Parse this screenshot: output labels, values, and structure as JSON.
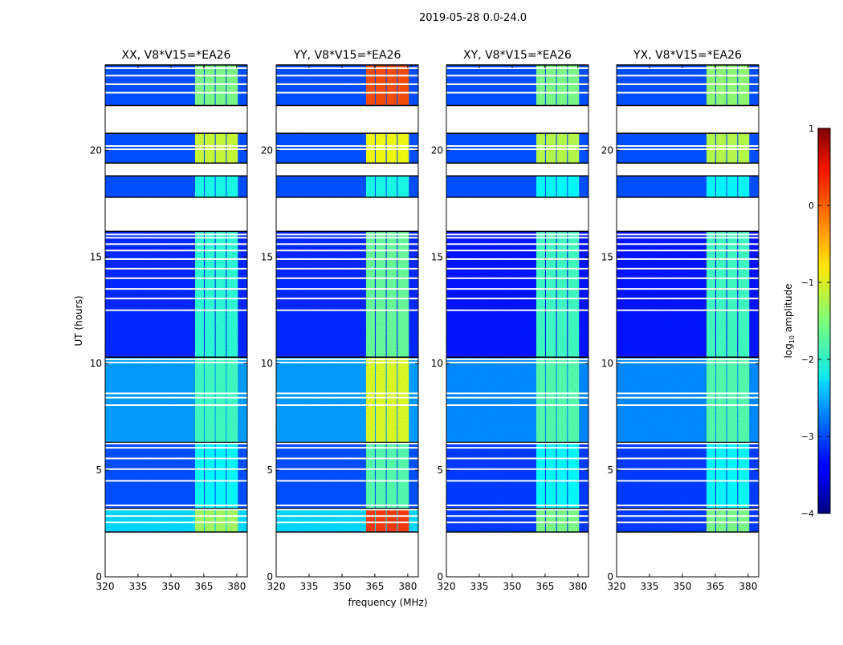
{
  "chart_data": {
    "type": "heatmap",
    "suptitle": "2019-05-28 0.0-24.0",
    "xlabel": "frequency (MHz)",
    "ylabel": "UT (hours)",
    "xlim": [
      320,
      384.8
    ],
    "ylim": [
      0,
      24
    ],
    "xticks": [
      320,
      335,
      350,
      365,
      380
    ],
    "yticks": [
      0,
      5,
      10,
      15,
      20
    ],
    "colorbar": {
      "label": "log10 amplitude",
      "label_main": "log",
      "label_sub": "10",
      "label_rest": " amplitude",
      "range": [
        -4,
        1
      ],
      "ticks": [
        1,
        0,
        -1,
        -2,
        -3,
        -4
      ]
    },
    "subbands": [
      [
        361,
        365
      ],
      [
        365.4,
        370
      ],
      [
        370.4,
        375
      ],
      [
        375.4,
        380.5
      ]
    ],
    "flagged_hours": [
      2.55,
      2.85,
      3.15,
      3.35,
      4.5,
      5.05,
      5.55,
      6.05,
      6.25,
      8.05,
      8.4,
      8.6,
      10.05,
      10.2,
      12.5,
      13.05,
      13.5,
      14.0,
      14.45,
      14.9,
      15.3,
      15.6,
      15.9,
      16.05,
      20.2,
      20.05,
      22.7,
      23.1,
      23.5,
      23.85
    ],
    "panels": [
      {
        "title": "XX, V8*V15=*EA26",
        "segments": [
          {
            "t": [
              2.1,
              3.2
            ],
            "bg": -2.3,
            "band": -1.3
          },
          {
            "t": [
              3.2,
              6.3
            ],
            "bg": -3.0,
            "band": -2.1
          },
          {
            "t": [
              6.3,
              10.3
            ],
            "bg": -2.6,
            "band": -1.8
          },
          {
            "t": [
              10.3,
              16.2
            ],
            "bg": -3.2,
            "band": -1.9
          },
          {
            "t": [
              17.8,
              18.8
            ],
            "bg": -3.0,
            "band": -2.0
          },
          {
            "t": [
              19.4,
              20.8
            ],
            "bg": -3.0,
            "band": -1.1
          },
          {
            "t": [
              22.1,
              24.0
            ],
            "bg": -3.0,
            "band": -1.5
          }
        ]
      },
      {
        "title": "YY, V8*V15=*EA26",
        "segments": [
          {
            "t": [
              2.1,
              3.2
            ],
            "bg": -2.3,
            "band": 0.1
          },
          {
            "t": [
              3.2,
              6.3
            ],
            "bg": -3.0,
            "band": -1.7
          },
          {
            "t": [
              6.3,
              10.3
            ],
            "bg": -2.6,
            "band": -1.0
          },
          {
            "t": [
              10.3,
              16.2
            ],
            "bg": -3.2,
            "band": -1.6
          },
          {
            "t": [
              17.8,
              18.8
            ],
            "bg": -3.0,
            "band": -2.0
          },
          {
            "t": [
              19.4,
              20.8
            ],
            "bg": -3.0,
            "band": -0.9
          },
          {
            "t": [
              22.1,
              24.0
            ],
            "bg": -3.0,
            "band": 0.0
          }
        ]
      },
      {
        "title": "XY, V8*V15=*EA26",
        "segments": [
          {
            "t": [
              2.1,
              3.2
            ],
            "bg": -3.1,
            "band": -1.5
          },
          {
            "t": [
              3.2,
              6.3
            ],
            "bg": -3.1,
            "band": -2.1
          },
          {
            "t": [
              6.3,
              10.3
            ],
            "bg": -2.7,
            "band": -1.7
          },
          {
            "t": [
              10.3,
              16.2
            ],
            "bg": -3.3,
            "band": -1.8
          },
          {
            "t": [
              17.8,
              18.8
            ],
            "bg": -3.0,
            "band": -2.1
          },
          {
            "t": [
              19.4,
              20.8
            ],
            "bg": -3.0,
            "band": -1.2
          },
          {
            "t": [
              22.1,
              24.0
            ],
            "bg": -3.0,
            "band": -1.5
          }
        ]
      },
      {
        "title": "YX, V8*V15=*EA26",
        "segments": [
          {
            "t": [
              2.1,
              3.2
            ],
            "bg": -3.1,
            "band": -1.5
          },
          {
            "t": [
              3.2,
              6.3
            ],
            "bg": -3.1,
            "band": -2.1
          },
          {
            "t": [
              6.3,
              10.3
            ],
            "bg": -2.7,
            "band": -1.7
          },
          {
            "t": [
              10.3,
              16.2
            ],
            "bg": -3.3,
            "band": -1.8
          },
          {
            "t": [
              17.8,
              18.8
            ],
            "bg": -3.0,
            "band": -2.1
          },
          {
            "t": [
              19.4,
              20.8
            ],
            "bg": -3.0,
            "band": -1.2
          },
          {
            "t": [
              22.1,
              24.0
            ],
            "bg": -3.0,
            "band": -1.4
          }
        ]
      }
    ]
  }
}
